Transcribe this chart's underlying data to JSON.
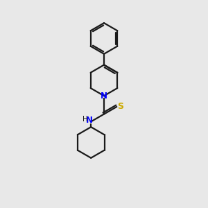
{
  "background_color": "#e8e8e8",
  "bond_color": "#1a1a1a",
  "n_color": "#0000ff",
  "s_color": "#ccaa00",
  "line_width": 1.6,
  "figsize": [
    3.0,
    3.0
  ],
  "dpi": 100,
  "xlim": [
    3.0,
    7.5
  ],
  "ylim": [
    0.5,
    10.0
  ]
}
